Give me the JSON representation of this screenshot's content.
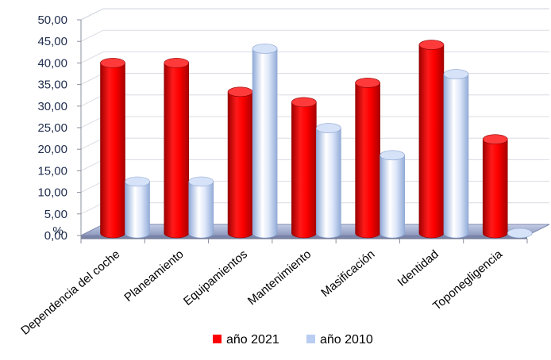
{
  "chart_data": {
    "type": "bar",
    "categories": [
      "Dependencia del coche",
      "Planeamiento",
      "Equipamientos",
      "Mantenimiento",
      "Masificación",
      "Identidad",
      "Toponegligencia"
    ],
    "series": [
      {
        "name": "año 2021",
        "values": [
          40.0,
          40.0,
          33.3,
          30.9,
          35.4,
          44.2,
          22.3
        ],
        "color": "#ff0000"
      },
      {
        "name": "año 2010",
        "values": [
          12.5,
          12.5,
          43.3,
          24.9,
          18.6,
          37.4,
          0.0
        ],
        "color": "#b9cdf2"
      }
    ],
    "ylim": [
      0,
      50
    ],
    "yticks": [
      "0,00",
      "5,00",
      "10,00",
      "15,00",
      "20,00",
      "25,00",
      "30,00",
      "35,00",
      "40,00",
      "45,00",
      "50,00"
    ],
    "yunit": "%",
    "grid": true,
    "legend_position": "bottom"
  }
}
